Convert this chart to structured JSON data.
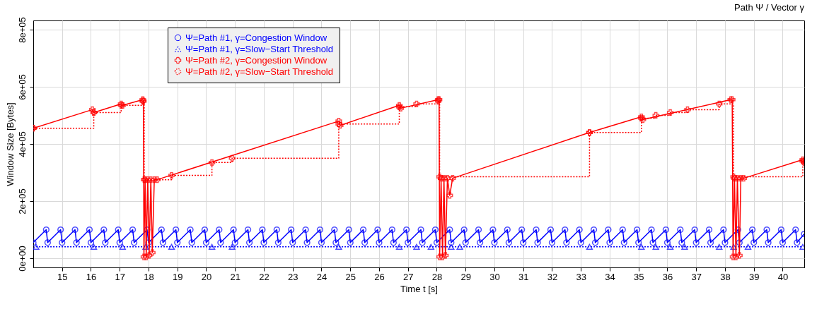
{
  "chart_data": {
    "type": "line",
    "title": "Path Ψ / Vector γ",
    "xlabel": "Time t [s]",
    "ylabel": "Window Size [Bytes]",
    "xlim": [
      14,
      40.75
    ],
    "ylim": [
      -32000,
      832000
    ],
    "xticks": [
      15,
      16,
      17,
      18,
      19,
      20,
      21,
      22,
      23,
      24,
      25,
      26,
      27,
      28,
      29,
      30,
      31,
      32,
      33,
      34,
      35,
      36,
      37,
      38,
      39,
      40
    ],
    "yticks": [
      {
        "value": 0,
        "label": "0e+00"
      },
      {
        "value": 200000,
        "label": "2e+05"
      },
      {
        "value": 400000,
        "label": "4e+05"
      },
      {
        "value": 600000,
        "label": "6e+05"
      },
      {
        "value": 800000,
        "label": "8e+05"
      }
    ],
    "grid": true,
    "legend": "top left",
    "series": [
      {
        "name": "Ψ=Path #1, γ=Congestion Window",
        "color": "#0000ff",
        "type": "line",
        "marker": "circle",
        "line_style": "solid",
        "x": [
          14,
          14.45,
          14.5,
          14.95,
          15,
          15.45,
          15.5,
          15.95,
          16,
          16.45,
          16.5,
          16.95,
          17,
          17.45,
          17.5,
          17.95,
          18,
          18.45,
          18.5,
          18.95,
          19,
          19.45,
          19.5,
          19.95,
          20,
          20.45,
          20.5,
          20.95,
          21,
          21.45,
          21.5,
          21.95,
          22,
          22.45,
          22.5,
          22.95,
          23,
          23.45,
          23.5,
          23.95,
          24,
          24.45,
          24.5,
          24.95,
          25,
          25.45,
          25.5,
          25.95,
          26,
          26.45,
          26.5,
          26.95,
          27,
          27.45,
          27.5,
          27.95,
          28,
          28.45,
          28.5,
          28.95,
          29,
          29.45,
          29.5,
          29.95,
          30,
          30.45,
          30.5,
          30.95,
          31,
          31.45,
          31.5,
          31.95,
          32,
          32.45,
          32.5,
          32.95,
          33,
          33.45,
          33.5,
          33.95,
          34,
          34.45,
          34.5,
          34.95,
          35,
          35.45,
          35.5,
          35.95,
          36,
          36.45,
          36.5,
          36.95,
          37,
          37.45,
          37.5,
          37.95,
          38,
          38.45,
          38.5,
          38.95,
          39,
          39.45,
          39.5,
          39.95,
          40,
          40.45,
          40.5,
          40.75
        ],
        "values": [
          55000,
          100000,
          55000,
          100000,
          55000,
          100000,
          55000,
          100000,
          55000,
          100000,
          55000,
          100000,
          55000,
          100000,
          55000,
          100000,
          55000,
          100000,
          55000,
          100000,
          55000,
          100000,
          55000,
          100000,
          55000,
          100000,
          55000,
          100000,
          55000,
          100000,
          55000,
          100000,
          55000,
          100000,
          55000,
          100000,
          55000,
          100000,
          55000,
          100000,
          55000,
          100000,
          55000,
          100000,
          55000,
          100000,
          55000,
          100000,
          55000,
          100000,
          55000,
          100000,
          55000,
          100000,
          55000,
          100000,
          55000,
          100000,
          55000,
          100000,
          55000,
          100000,
          55000,
          100000,
          55000,
          100000,
          55000,
          100000,
          55000,
          100000,
          55000,
          100000,
          55000,
          100000,
          55000,
          100000,
          55000,
          100000,
          55000,
          100000,
          55000,
          100000,
          55000,
          100000,
          55000,
          100000,
          55000,
          100000,
          55000,
          100000,
          55000,
          100000,
          55000,
          100000,
          55000,
          100000,
          55000,
          100000,
          55000,
          100000,
          55000,
          100000,
          55000,
          100000,
          55000,
          100000,
          55000,
          85000
        ]
      },
      {
        "name": "Ψ=Path #1, γ=Slow−Start Threshold",
        "color": "#0000ff",
        "type": "step",
        "marker": "triangle",
        "line_style": "dotted",
        "x": [
          14.1,
          16.1,
          17.1,
          17.9,
          18.8,
          20.2,
          20.9,
          24.6,
          26.7,
          27.3,
          27.8,
          28.5,
          28.8,
          33.3,
          35.1,
          35.6,
          36.1,
          36.6,
          37.8,
          38.3,
          38.8,
          40.7
        ],
        "values": [
          40000,
          40000,
          40000,
          40000,
          40000,
          40000,
          40000,
          40000,
          40000,
          40000,
          40000,
          40000,
          40000,
          40000,
          40000,
          40000,
          40000,
          40000,
          40000,
          40000,
          40000,
          40000
        ]
      },
      {
        "name": "Ψ=Path #2, γ=Congestion Window",
        "color": "#ff0000",
        "type": "line",
        "marker": "cross",
        "line_style": "solid",
        "x": [
          14,
          16.05,
          16.1,
          17.05,
          17.1,
          17.8,
          17.82,
          17.84,
          17.88,
          17.92,
          17.97,
          18.02,
          18.08,
          18.13,
          18.2,
          18.3,
          24.6,
          24.65,
          26.7,
          26.75,
          28.05,
          28.08,
          28.1,
          28.15,
          28.2,
          28.25,
          28.3,
          28.37,
          28.45,
          28.55,
          33.3,
          35.1,
          35.15,
          38.2,
          38.25,
          38.28,
          38.33,
          38.38,
          38.43,
          38.5,
          38.55,
          38.65,
          40.7,
          40.75
        ],
        "values": [
          455000,
          520000,
          510000,
          540000,
          535000,
          555000,
          550000,
          5000,
          275000,
          5000,
          275000,
          10000,
          275000,
          20000,
          275000,
          275000,
          480000,
          465000,
          535000,
          525000,
          555000,
          555000,
          5000,
          280000,
          5000,
          280000,
          10000,
          280000,
          220000,
          280000,
          440000,
          495000,
          485000,
          555000,
          555000,
          5000,
          280000,
          5000,
          280000,
          10000,
          280000,
          280000,
          345000,
          335000
        ]
      },
      {
        "name": "Ψ=Path #2, γ=Slow−Start Threshold",
        "color": "#ff0000",
        "type": "step",
        "marker": "cross",
        "line_style": "dotted",
        "x": [
          14,
          16.1,
          17.05,
          17.8,
          17.85,
          18.8,
          20.2,
          20.9,
          24.6,
          26.7,
          27.3,
          28.05,
          28.1,
          33.3,
          35.1,
          35.6,
          36.1,
          36.7,
          37.8,
          38.3,
          40.7,
          40.75
        ],
        "values": [
          455000,
          510000,
          535000,
          550000,
          275000,
          290000,
          335000,
          350000,
          470000,
          530000,
          540000,
          550000,
          285000,
          440000,
          490000,
          500000,
          510000,
          520000,
          540000,
          285000,
          340000,
          340000
        ]
      }
    ]
  }
}
